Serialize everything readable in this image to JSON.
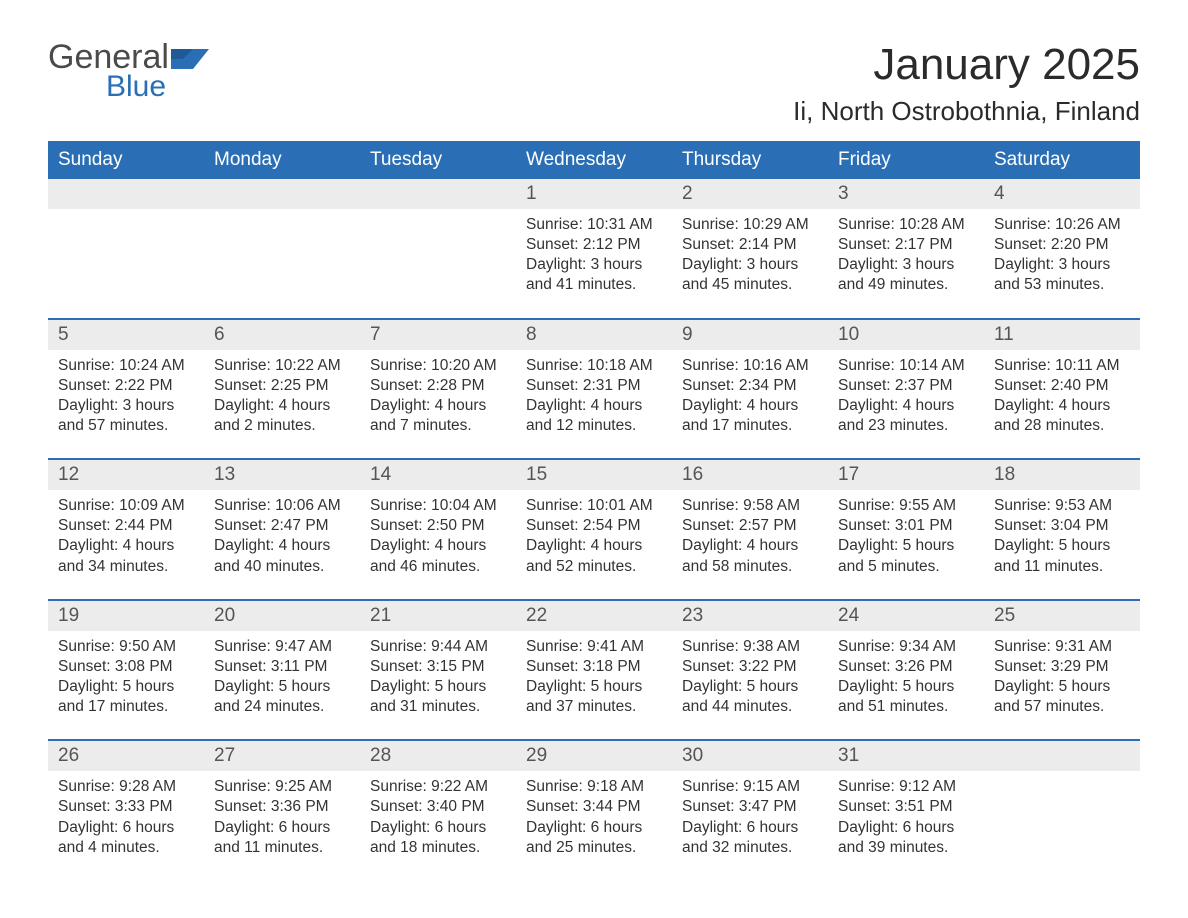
{
  "logo": {
    "text_main": "General",
    "text_sub": "Blue",
    "main_color": "#4a4a4a",
    "sub_color": "#2a6fb5"
  },
  "header": {
    "month_title": "January 2025",
    "location": "Ii, North Ostrobothnia, Finland"
  },
  "colors": {
    "header_bg": "#2a6fb5",
    "header_text": "#ffffff",
    "daynum_bg": "#ececec",
    "week_border": "#2a6fb5",
    "body_text": "#333333",
    "background": "#ffffff"
  },
  "day_names": [
    "Sunday",
    "Monday",
    "Tuesday",
    "Wednesday",
    "Thursday",
    "Friday",
    "Saturday"
  ],
  "weeks": [
    [
      {
        "num": "",
        "sunrise": "",
        "sunset": "",
        "daylight": ""
      },
      {
        "num": "",
        "sunrise": "",
        "sunset": "",
        "daylight": ""
      },
      {
        "num": "",
        "sunrise": "",
        "sunset": "",
        "daylight": ""
      },
      {
        "num": "1",
        "sunrise": "Sunrise: 10:31 AM",
        "sunset": "Sunset: 2:12 PM",
        "daylight": "Daylight: 3 hours and 41 minutes."
      },
      {
        "num": "2",
        "sunrise": "Sunrise: 10:29 AM",
        "sunset": "Sunset: 2:14 PM",
        "daylight": "Daylight: 3 hours and 45 minutes."
      },
      {
        "num": "3",
        "sunrise": "Sunrise: 10:28 AM",
        "sunset": "Sunset: 2:17 PM",
        "daylight": "Daylight: 3 hours and 49 minutes."
      },
      {
        "num": "4",
        "sunrise": "Sunrise: 10:26 AM",
        "sunset": "Sunset: 2:20 PM",
        "daylight": "Daylight: 3 hours and 53 minutes."
      }
    ],
    [
      {
        "num": "5",
        "sunrise": "Sunrise: 10:24 AM",
        "sunset": "Sunset: 2:22 PM",
        "daylight": "Daylight: 3 hours and 57 minutes."
      },
      {
        "num": "6",
        "sunrise": "Sunrise: 10:22 AM",
        "sunset": "Sunset: 2:25 PM",
        "daylight": "Daylight: 4 hours and 2 minutes."
      },
      {
        "num": "7",
        "sunrise": "Sunrise: 10:20 AM",
        "sunset": "Sunset: 2:28 PM",
        "daylight": "Daylight: 4 hours and 7 minutes."
      },
      {
        "num": "8",
        "sunrise": "Sunrise: 10:18 AM",
        "sunset": "Sunset: 2:31 PM",
        "daylight": "Daylight: 4 hours and 12 minutes."
      },
      {
        "num": "9",
        "sunrise": "Sunrise: 10:16 AM",
        "sunset": "Sunset: 2:34 PM",
        "daylight": "Daylight: 4 hours and 17 minutes."
      },
      {
        "num": "10",
        "sunrise": "Sunrise: 10:14 AM",
        "sunset": "Sunset: 2:37 PM",
        "daylight": "Daylight: 4 hours and 23 minutes."
      },
      {
        "num": "11",
        "sunrise": "Sunrise: 10:11 AM",
        "sunset": "Sunset: 2:40 PM",
        "daylight": "Daylight: 4 hours and 28 minutes."
      }
    ],
    [
      {
        "num": "12",
        "sunrise": "Sunrise: 10:09 AM",
        "sunset": "Sunset: 2:44 PM",
        "daylight": "Daylight: 4 hours and 34 minutes."
      },
      {
        "num": "13",
        "sunrise": "Sunrise: 10:06 AM",
        "sunset": "Sunset: 2:47 PM",
        "daylight": "Daylight: 4 hours and 40 minutes."
      },
      {
        "num": "14",
        "sunrise": "Sunrise: 10:04 AM",
        "sunset": "Sunset: 2:50 PM",
        "daylight": "Daylight: 4 hours and 46 minutes."
      },
      {
        "num": "15",
        "sunrise": "Sunrise: 10:01 AM",
        "sunset": "Sunset: 2:54 PM",
        "daylight": "Daylight: 4 hours and 52 minutes."
      },
      {
        "num": "16",
        "sunrise": "Sunrise: 9:58 AM",
        "sunset": "Sunset: 2:57 PM",
        "daylight": "Daylight: 4 hours and 58 minutes."
      },
      {
        "num": "17",
        "sunrise": "Sunrise: 9:55 AM",
        "sunset": "Sunset: 3:01 PM",
        "daylight": "Daylight: 5 hours and 5 minutes."
      },
      {
        "num": "18",
        "sunrise": "Sunrise: 9:53 AM",
        "sunset": "Sunset: 3:04 PM",
        "daylight": "Daylight: 5 hours and 11 minutes."
      }
    ],
    [
      {
        "num": "19",
        "sunrise": "Sunrise: 9:50 AM",
        "sunset": "Sunset: 3:08 PM",
        "daylight": "Daylight: 5 hours and 17 minutes."
      },
      {
        "num": "20",
        "sunrise": "Sunrise: 9:47 AM",
        "sunset": "Sunset: 3:11 PM",
        "daylight": "Daylight: 5 hours and 24 minutes."
      },
      {
        "num": "21",
        "sunrise": "Sunrise: 9:44 AM",
        "sunset": "Sunset: 3:15 PM",
        "daylight": "Daylight: 5 hours and 31 minutes."
      },
      {
        "num": "22",
        "sunrise": "Sunrise: 9:41 AM",
        "sunset": "Sunset: 3:18 PM",
        "daylight": "Daylight: 5 hours and 37 minutes."
      },
      {
        "num": "23",
        "sunrise": "Sunrise: 9:38 AM",
        "sunset": "Sunset: 3:22 PM",
        "daylight": "Daylight: 5 hours and 44 minutes."
      },
      {
        "num": "24",
        "sunrise": "Sunrise: 9:34 AM",
        "sunset": "Sunset: 3:26 PM",
        "daylight": "Daylight: 5 hours and 51 minutes."
      },
      {
        "num": "25",
        "sunrise": "Sunrise: 9:31 AM",
        "sunset": "Sunset: 3:29 PM",
        "daylight": "Daylight: 5 hours and 57 minutes."
      }
    ],
    [
      {
        "num": "26",
        "sunrise": "Sunrise: 9:28 AM",
        "sunset": "Sunset: 3:33 PM",
        "daylight": "Daylight: 6 hours and 4 minutes."
      },
      {
        "num": "27",
        "sunrise": "Sunrise: 9:25 AM",
        "sunset": "Sunset: 3:36 PM",
        "daylight": "Daylight: 6 hours and 11 minutes."
      },
      {
        "num": "28",
        "sunrise": "Sunrise: 9:22 AM",
        "sunset": "Sunset: 3:40 PM",
        "daylight": "Daylight: 6 hours and 18 minutes."
      },
      {
        "num": "29",
        "sunrise": "Sunrise: 9:18 AM",
        "sunset": "Sunset: 3:44 PM",
        "daylight": "Daylight: 6 hours and 25 minutes."
      },
      {
        "num": "30",
        "sunrise": "Sunrise: 9:15 AM",
        "sunset": "Sunset: 3:47 PM",
        "daylight": "Daylight: 6 hours and 32 minutes."
      },
      {
        "num": "31",
        "sunrise": "Sunrise: 9:12 AM",
        "sunset": "Sunset: 3:51 PM",
        "daylight": "Daylight: 6 hours and 39 minutes."
      },
      {
        "num": "",
        "sunrise": "",
        "sunset": "",
        "daylight": ""
      }
    ]
  ]
}
